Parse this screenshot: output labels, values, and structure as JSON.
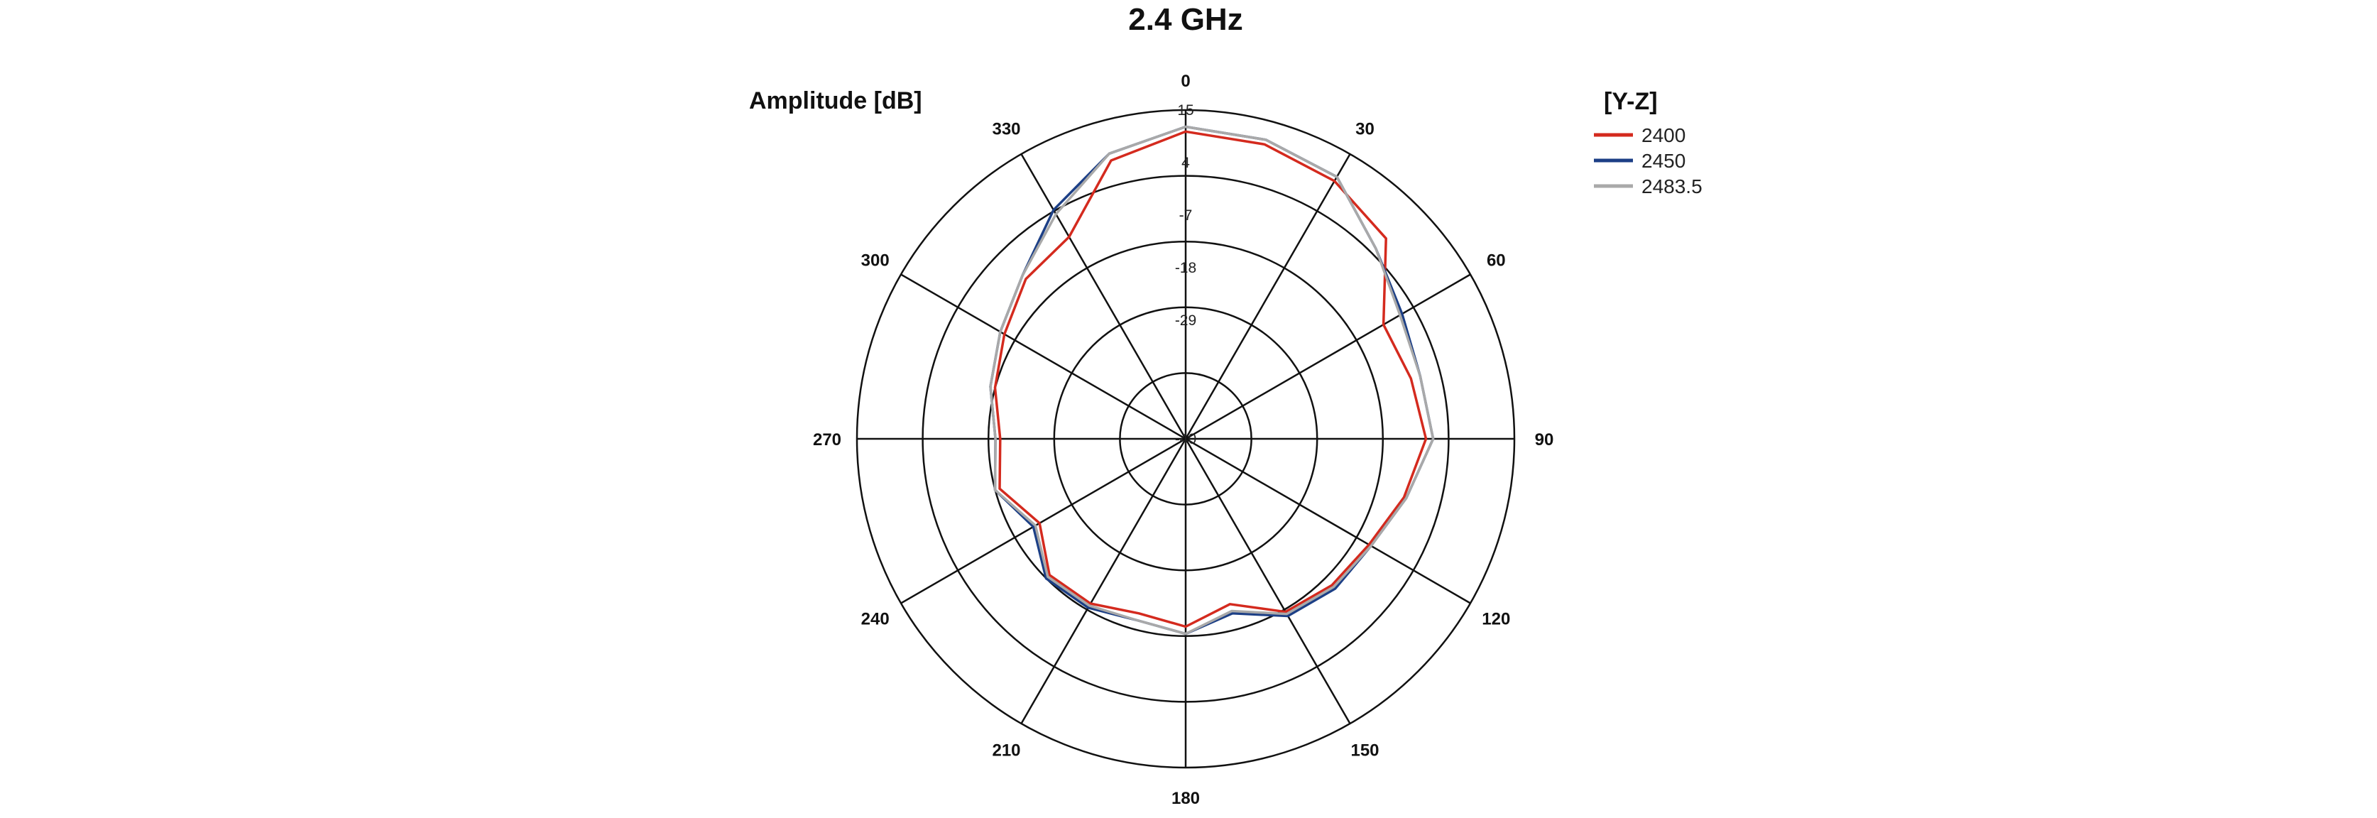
{
  "chart_data": {
    "type": "polar",
    "title": "2.4 GHz",
    "radial_label": "Amplitude [dB]",
    "radial_ticks": [
      "-40",
      "-29",
      "-18",
      "-7",
      "4",
      "15"
    ],
    "r_range": [
      -40,
      15
    ],
    "angle_ticks": [
      "0",
      "30",
      "60",
      "90",
      "120",
      "150",
      "180",
      "210",
      "240",
      "270",
      "300",
      "330"
    ],
    "angle_step_deg": 15,
    "legend_title": "[Y-Z]",
    "grid": true,
    "series": [
      {
        "name": "2400",
        "color": "#d42a1e",
        "values": [
          10.5,
          10.0,
          8.5,
          5.5,
          -6.0,
          -5.0,
          -3.5,
          -6.5,
          -9.5,
          -10.5,
          -12.0,
          -18.0,
          -14.5,
          -16.0,
          -14.0,
          -13.5,
          -18.5,
          -13.5,
          -15.0,
          -12.5,
          -10.0,
          -6.5,
          -5.0,
          6.5
        ]
      },
      {
        "name": "2450",
        "color": "#1c3f86",
        "values": [
          11.5,
          11.0,
          9.5,
          2.5,
          -1.5,
          -3.0,
          -2.0,
          -6.0,
          -9.0,
          -9.5,
          -11.0,
          -16.0,
          -13.0,
          -14.5,
          -13.0,
          -12.5,
          -17.0,
          -12.5,
          -14.0,
          -11.5,
          -9.0,
          -5.5,
          1.5,
          8.0
        ]
      },
      {
        "name": "2483.5",
        "color": "#a9a9a9",
        "values": [
          11.5,
          11.0,
          9.5,
          2.5,
          -2.0,
          -3.0,
          -2.0,
          -6.0,
          -9.0,
          -10.0,
          -11.5,
          -16.5,
          -13.0,
          -14.5,
          -13.5,
          -13.0,
          -17.5,
          -12.5,
          -14.0,
          -11.5,
          -9.0,
          -5.5,
          0.5,
          8.0
        ]
      }
    ]
  }
}
